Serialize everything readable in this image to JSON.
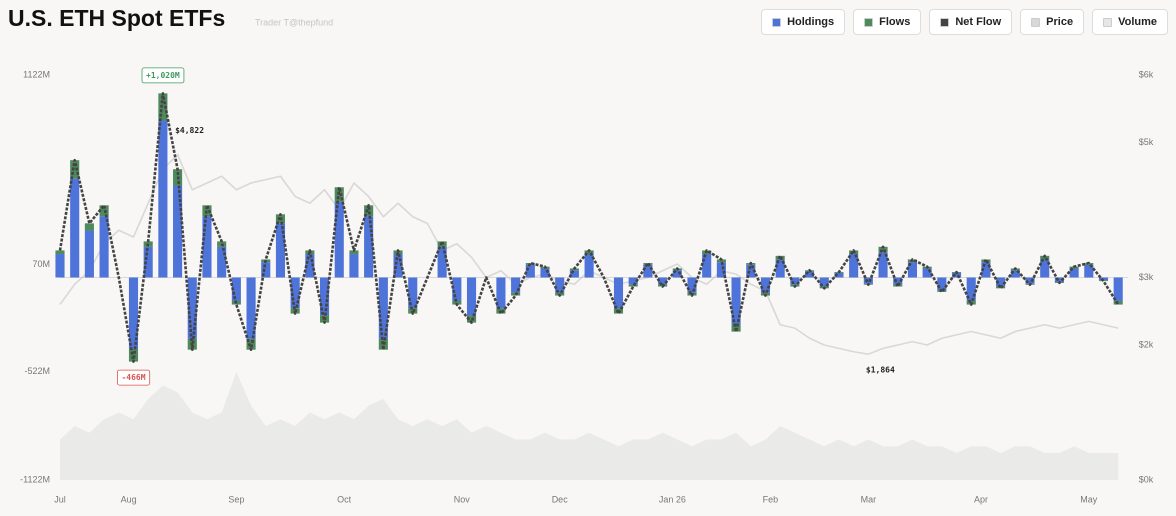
{
  "chart_data": {
    "type": "bar",
    "title": "U.S. ETH Spot ETFs",
    "subtitle": "Trader T@thepfund",
    "x": [
      0,
      3,
      6,
      9,
      12,
      15,
      18,
      21,
      24,
      27,
      30,
      33,
      36,
      39,
      42,
      45,
      48,
      51,
      54,
      57,
      60,
      63,
      66,
      69,
      72,
      75,
      78,
      81,
      84,
      87,
      90,
      93,
      96,
      99,
      102,
      105,
      108,
      111,
      114,
      117,
      120,
      123,
      126,
      129,
      132,
      135,
      138,
      141,
      144,
      147,
      150,
      153,
      156,
      159,
      162,
      165,
      168,
      171,
      174,
      177,
      180,
      183,
      186,
      189,
      192,
      195,
      198,
      201,
      204,
      207,
      210,
      213,
      216
    ],
    "xlim": [
      0,
      218
    ],
    "xticks": [
      {
        "value": 0,
        "label": "Jul"
      },
      {
        "value": 14,
        "label": "Aug"
      },
      {
        "value": 36,
        "label": "Sep"
      },
      {
        "value": 58,
        "label": "Oct"
      },
      {
        "value": 82,
        "label": "Nov"
      },
      {
        "value": 102,
        "label": "Dec"
      },
      {
        "value": 125,
        "label": "Jan 26"
      },
      {
        "value": 145,
        "label": "Feb"
      },
      {
        "value": 165,
        "label": "Mar"
      },
      {
        "value": 188,
        "label": "Apr"
      },
      {
        "value": 210,
        "label": "May"
      }
    ],
    "ylim": [
      -1122,
      1122
    ],
    "yticks": [
      {
        "value": -1122,
        "label": "-1122M"
      },
      {
        "value": -522,
        "label": "-522M"
      },
      {
        "value": 70,
        "label": "70M"
      },
      {
        "value": 1122,
        "label": "1122M"
      }
    ],
    "y2lim": [
      0,
      6000
    ],
    "y2ticks": [
      {
        "value": 0,
        "label": "$0k"
      },
      {
        "value": 2000,
        "label": "$2k"
      },
      {
        "value": 3000,
        "label": "$3k"
      },
      {
        "value": 5000,
        "label": "$5k"
      },
      {
        "value": 6000,
        "label": "$6k"
      }
    ],
    "y3lim": [
      0,
      6
    ],
    "series": [
      {
        "name": "Holdings",
        "color": "#4f74d9",
        "kind": "bar",
        "values": [
          130,
          550,
          260,
          340,
          0,
          -396,
          170,
          870,
          510,
          -340,
          340,
          170,
          -130,
          -340,
          85,
          300,
          -170,
          130,
          -210,
          420,
          130,
          340,
          -340,
          130,
          -170,
          0,
          170,
          -130,
          -210,
          0,
          -170,
          -85,
          70,
          50,
          -85,
          40,
          130,
          0,
          -170,
          -40,
          70,
          -40,
          40,
          -85,
          130,
          85,
          -260,
          70,
          -85,
          100,
          -40,
          35,
          -50,
          25,
          130,
          -35,
          140,
          -40,
          85,
          50,
          -70,
          25,
          -130,
          85,
          -50,
          40,
          -35,
          100,
          -25,
          50,
          70,
          -15,
          -130
        ]
      },
      {
        "name": "Flows",
        "color": "#4e8a5c",
        "kind": "bar",
        "values": [
          20,
          100,
          40,
          60,
          0,
          -70,
          30,
          150,
          90,
          -60,
          60,
          30,
          -20,
          -60,
          15,
          50,
          -30,
          20,
          -40,
          80,
          20,
          60,
          -60,
          20,
          -30,
          0,
          30,
          -20,
          -40,
          0,
          -30,
          -15,
          10,
          10,
          -15,
          10,
          20,
          0,
          -30,
          -10,
          10,
          -10,
          10,
          -15,
          20,
          15,
          -40,
          10,
          -15,
          20,
          -10,
          5,
          -10,
          5,
          20,
          -5,
          30,
          -10,
          15,
          10,
          -10,
          5,
          -20,
          15,
          -10,
          10,
          -5,
          20,
          -5,
          10,
          10,
          -5,
          -20
        ]
      },
      {
        "name": "Net Flow",
        "color": "#444444",
        "kind": "line",
        "values": [
          150,
          650,
          300,
          400,
          0,
          -466,
          200,
          1020,
          600,
          -400,
          400,
          200,
          -150,
          -400,
          100,
          350,
          -200,
          150,
          -250,
          500,
          150,
          400,
          -400,
          150,
          -200,
          0,
          200,
          -150,
          -250,
          0,
          -200,
          -100,
          80,
          60,
          -100,
          50,
          150,
          0,
          -200,
          -50,
          80,
          -50,
          50,
          -100,
          150,
          100,
          -300,
          80,
          -100,
          120,
          -50,
          40,
          -60,
          30,
          150,
          -40,
          170,
          -50,
          100,
          60,
          -80,
          30,
          -150,
          100,
          -60,
          50,
          -40,
          120,
          -30,
          60,
          80,
          -20,
          -150
        ]
      },
      {
        "name": "Price",
        "color": "#d8d8d8",
        "kind": "line",
        "axis": "y2",
        "values": [
          2600,
          2900,
          3100,
          3500,
          3700,
          3600,
          4100,
          4600,
          4822,
          4300,
          4400,
          4500,
          4300,
          4400,
          4450,
          4500,
          4200,
          4100,
          4300,
          4000,
          4400,
          4200,
          3900,
          4100,
          3900,
          3800,
          3400,
          3500,
          3300,
          3000,
          3100,
          2900,
          3000,
          3050,
          2950,
          2900,
          3100,
          3000,
          2900,
          2950,
          3000,
          3100,
          3200,
          3000,
          2900,
          3100,
          3050,
          2900,
          2800,
          2300,
          2250,
          2100,
          2000,
          1950,
          1900,
          1864,
          1950,
          2000,
          2050,
          2000,
          2100,
          2150,
          2200,
          2150,
          2100,
          2200,
          2250,
          2300,
          2250,
          2300,
          2350,
          2300,
          2250
        ]
      },
      {
        "name": "Volume",
        "color": "#e6e6e6",
        "kind": "area",
        "axis": "y3",
        "values": [
          0.6,
          0.8,
          0.7,
          0.9,
          1.0,
          0.9,
          1.2,
          1.4,
          1.3,
          1.0,
          0.9,
          1.0,
          1.6,
          1.1,
          0.8,
          0.9,
          0.8,
          1.0,
          0.9,
          1.0,
          0.9,
          1.1,
          1.2,
          0.9,
          0.8,
          0.9,
          0.8,
          0.9,
          0.7,
          0.8,
          0.7,
          0.6,
          0.6,
          0.7,
          0.6,
          0.6,
          0.7,
          0.6,
          0.5,
          0.6,
          0.6,
          0.7,
          0.6,
          0.5,
          0.6,
          0.6,
          0.7,
          0.5,
          0.6,
          0.8,
          0.7,
          0.6,
          0.5,
          0.6,
          0.5,
          0.6,
          0.5,
          0.5,
          0.6,
          0.5,
          0.5,
          0.4,
          0.5,
          0.5,
          0.4,
          0.5,
          0.5,
          0.4,
          0.4,
          0.5,
          0.4,
          0.4,
          0.4
        ]
      }
    ],
    "annotations": [
      {
        "text": "+1,020M",
        "x": 21,
        "y": 1020,
        "axis": "y",
        "color": "#3f9b5a"
      },
      {
        "text": "-466M",
        "x": 15,
        "y": -466,
        "axis": "y",
        "color": "#d9534f"
      },
      {
        "text": "$4,822",
        "x": 24,
        "y": 4822,
        "axis": "y2"
      },
      {
        "text": "$1,864",
        "x": 165,
        "y": 1864,
        "axis": "y2"
      }
    ]
  }
}
